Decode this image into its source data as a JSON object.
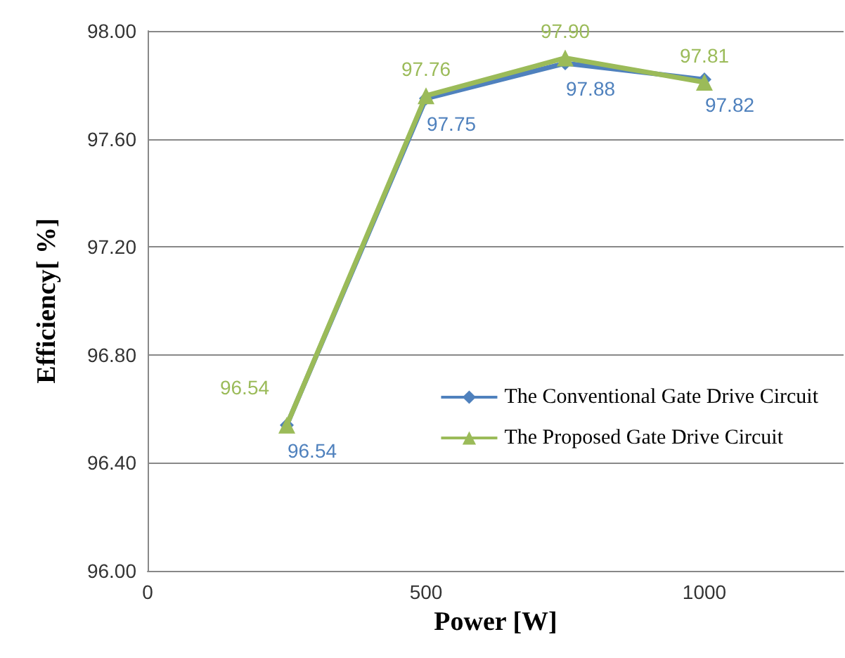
{
  "chart_data": {
    "type": "line",
    "xlabel": "Power [W]",
    "ylabel": "Efficiency[ %]",
    "x": [
      250,
      500,
      750,
      1000
    ],
    "xlim": [
      0,
      1250
    ],
    "xticks": [
      0,
      500,
      1000
    ],
    "ylim": [
      96,
      98
    ],
    "yticks": [
      {
        "value": 96,
        "label": "96.00"
      },
      {
        "value": 96.4,
        "label": "96.40"
      },
      {
        "value": 96.8,
        "label": "96.80"
      },
      {
        "value": 97.2,
        "label": "97.20"
      },
      {
        "value": 97.6,
        "label": "97.60"
      },
      {
        "value": 98,
        "label": "98.00"
      }
    ],
    "grid": "y",
    "legend": "right",
    "series": [
      {
        "name": "The Conventional Gate Drive Circuit",
        "color": "#4f81bd",
        "marker": "diamond",
        "values": [
          96.54,
          97.75,
          97.88,
          97.82
        ],
        "value_labels": [
          "96.54",
          "97.75",
          "97.88",
          "97.82"
        ]
      },
      {
        "name": "The Proposed Gate Drive Circuit",
        "color": "#9bbb59",
        "marker": "triangle",
        "values": [
          96.54,
          97.76,
          97.9,
          97.81
        ],
        "value_labels": [
          "96.54",
          "97.76",
          "97.90",
          "97.81"
        ]
      }
    ]
  }
}
